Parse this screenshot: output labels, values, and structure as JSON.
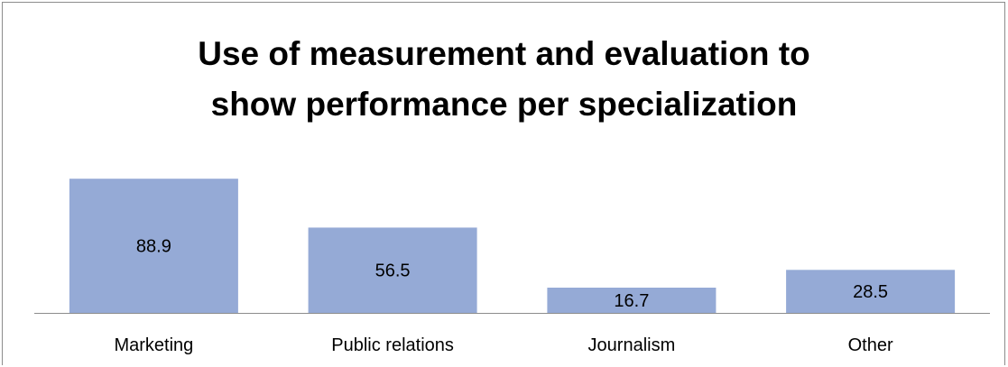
{
  "chart_data": {
    "type": "bar",
    "title_lines": [
      "Use of measurement and evaluation to",
      "show performance per specialization"
    ],
    "categories": [
      "Marketing",
      "Public relations",
      "Journalism",
      "Other"
    ],
    "values": [
      88.9,
      56.5,
      16.7,
      28.5
    ],
    "value_labels": [
      "88.9",
      "56.5",
      "16.7",
      "28.5"
    ],
    "bar_color": "#95aad6",
    "axis_color": "#8c8c8c",
    "ylim": [
      0,
      89
    ],
    "grid": false,
    "legend": false
  }
}
